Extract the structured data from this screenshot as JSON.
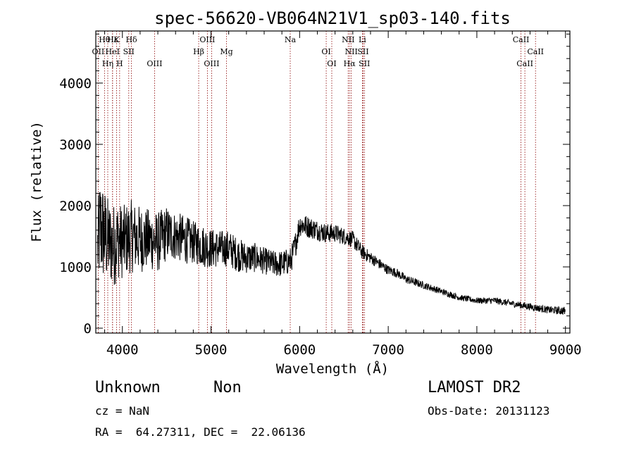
{
  "chart_data": {
    "type": "line",
    "title": "spec-56620-VB064N21V1_sp03-140.fits",
    "xlabel": "Wavelength (Å)",
    "ylabel": "Flux (relative)",
    "xlim": [
      3700,
      9050
    ],
    "ylim": [
      -80,
      4850
    ],
    "x_ticks": [
      4000,
      5000,
      6000,
      7000,
      8000,
      9000
    ],
    "y_ticks": [
      0,
      1000,
      2000,
      3000,
      4000
    ],
    "grid": false,
    "line_color": "#000000",
    "marker_color": "#8b0000",
    "series": [
      {
        "values_description": "Approximate flux envelope (wavelength Å, flux)",
        "x": [
          3720,
          3750,
          3800,
          3850,
          3900,
          3950,
          4000,
          4100,
          4200,
          4300,
          4400,
          4500,
          4600,
          4700,
          4800,
          4900,
          5000,
          5100,
          5200,
          5300,
          5400,
          5500,
          5600,
          5700,
          5800,
          5900,
          5950,
          6000,
          6100,
          6200,
          6300,
          6400,
          6500,
          6600,
          6650,
          6700,
          6800,
          6900,
          7000,
          7100,
          7200,
          7300,
          7400,
          7500,
          7600,
          7800,
          8000,
          8200,
          8400,
          8600,
          8800,
          9000
        ],
        "y": [
          1300,
          1650,
          1500,
          1400,
          1350,
          1450,
          1400,
          1500,
          1450,
          1450,
          1400,
          1550,
          1500,
          1450,
          1400,
          1350,
          1300,
          1300,
          1300,
          1200,
          1150,
          1150,
          1100,
          1050,
          1050,
          1100,
          1350,
          1700,
          1650,
          1600,
          1550,
          1550,
          1500,
          1450,
          1350,
          1250,
          1150,
          1050,
          950,
          900,
          800,
          750,
          700,
          650,
          600,
          500,
          450,
          450,
          400,
          350,
          300,
          280
        ],
        "noise": [
          700,
          900,
          800,
          700,
          700,
          650,
          600,
          600,
          550,
          500,
          500,
          450,
          400,
          400,
          350,
          350,
          330,
          300,
          300,
          280,
          260,
          240,
          220,
          220,
          220,
          220,
          220,
          200,
          180,
          170,
          160,
          150,
          140,
          130,
          130,
          120,
          100,
          90,
          80,
          75,
          70,
          65,
          60,
          55,
          55,
          50,
          50,
          55,
          55,
          60,
          60,
          70
        ]
      }
    ],
    "lines": [
      {
        "name": "Hθ",
        "x": 3798,
        "row": 0
      },
      {
        "name": "Hε",
        "x": 3889,
        "row": 0
      },
      {
        "name": "K",
        "x": 3934,
        "row": 0
      },
      {
        "name": "Hδ",
        "x": 4102,
        "row": 0
      },
      {
        "name": "OII",
        "x": 3727,
        "row": 1
      },
      {
        "name": "HeI",
        "x": 3889,
        "row": 1
      },
      {
        "name": "SII",
        "x": 4072,
        "row": 1
      },
      {
        "name": "OIII",
        "x": 4959,
        "row": 0
      },
      {
        "name": "Hβ",
        "x": 4861,
        "row": 1
      },
      {
        "name": "Mg",
        "x": 5175,
        "row": 1
      },
      {
        "name": "OIII",
        "x": 5007,
        "row": 2
      },
      {
        "name": "Na",
        "x": 5894,
        "row": 0
      },
      {
        "name": "OI",
        "x": 6300,
        "row": 1
      },
      {
        "name": "OI",
        "x": 6363,
        "row": 2
      },
      {
        "name": "NII",
        "x": 6548,
        "row": 0
      },
      {
        "name": "NII",
        "x": 6583,
        "row": 1
      },
      {
        "name": "Hα",
        "x": 6563,
        "row": 2
      },
      {
        "name": "Li",
        "x": 6708,
        "row": 0
      },
      {
        "name": "SII",
        "x": 6717,
        "row": 1
      },
      {
        "name": "SII",
        "x": 6731,
        "row": 2
      },
      {
        "name": "OIII",
        "x": 4363,
        "row": 2
      },
      {
        "name": "Hη",
        "x": 3835,
        "row": 2
      },
      {
        "name": "H",
        "x": 3969,
        "row": 2
      },
      {
        "name": "CaII",
        "x": 8498,
        "row": 0
      },
      {
        "name": "CaII",
        "x": 8542,
        "row": 2
      },
      {
        "name": "CaII",
        "x": 8662,
        "row": 1
      }
    ]
  },
  "info": {
    "class": "Unknown",
    "subclass": "Non",
    "survey": "LAMOST DR2",
    "cz": "cz = NaN",
    "obs_date": "Obs-Date: 20131123",
    "coords": "RA =  64.27311, DEC =  22.06136"
  }
}
